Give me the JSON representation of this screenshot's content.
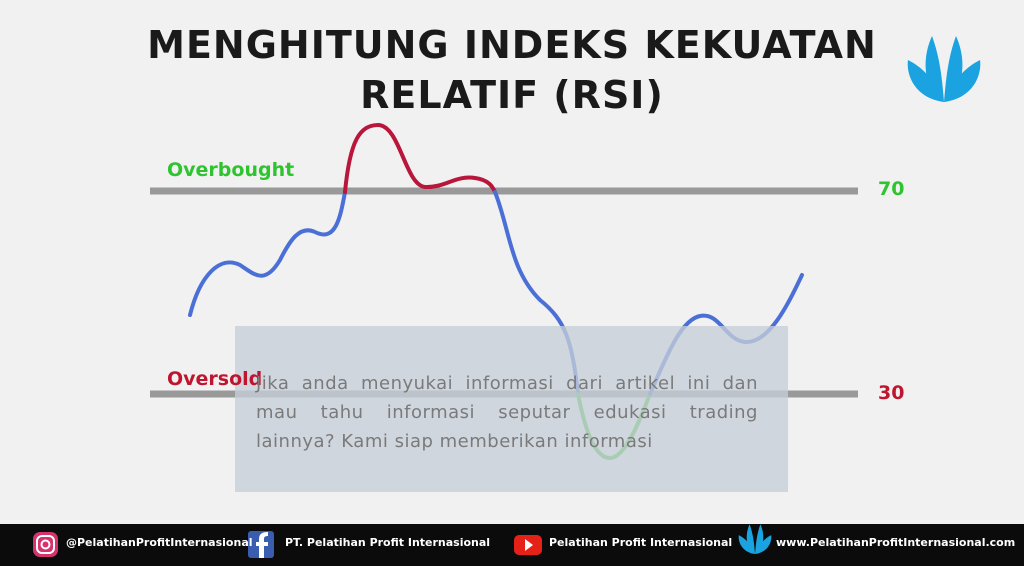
{
  "header": {
    "title_line1": "MENGHITUNG INDEKS KEKUATAN",
    "title_line2": "RELATIF (RSI)"
  },
  "levels": {
    "overbought_label": "Overbought",
    "overbought_value": "70",
    "oversold_label": "Oversold",
    "oversold_value": "30"
  },
  "overlay": {
    "lines": [
      "Jika anda menyukai informasi dari artikel ini dan",
      "mau tahu informasi seputar edukasi trading",
      "lainnya? Kami siap  memberikan informasi"
    ]
  },
  "footer": {
    "instagram": "@PelatihanProfitInternasional",
    "facebook": "PT. Pelatihan Profit Internasional",
    "youtube": "Pelatihan Profit Internasional",
    "website": "www.PelatihanProfitInternasional.com"
  }
}
